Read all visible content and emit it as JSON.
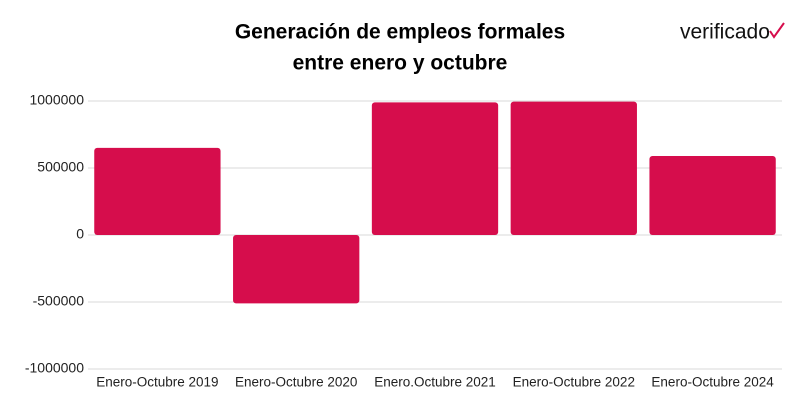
{
  "chart_data": {
    "type": "bar",
    "title": [
      "Generación de empleos formales",
      "entre enero y octubre"
    ],
    "brand": "verificado",
    "categories": [
      "Enero-Octubre 2019",
      "Enero-Octubre 2020",
      "Enero.Octubre 2021",
      "Enero-Octubre 2022",
      "Enero-Octubre 2024"
    ],
    "values": [
      650000,
      -510000,
      990000,
      995000,
      590000
    ],
    "color": "#d60d4c",
    "ylim": [
      -1000000,
      1000000
    ],
    "yticks": [
      -1000000,
      -500000,
      0,
      500000,
      1000000
    ],
    "grid": true
  }
}
